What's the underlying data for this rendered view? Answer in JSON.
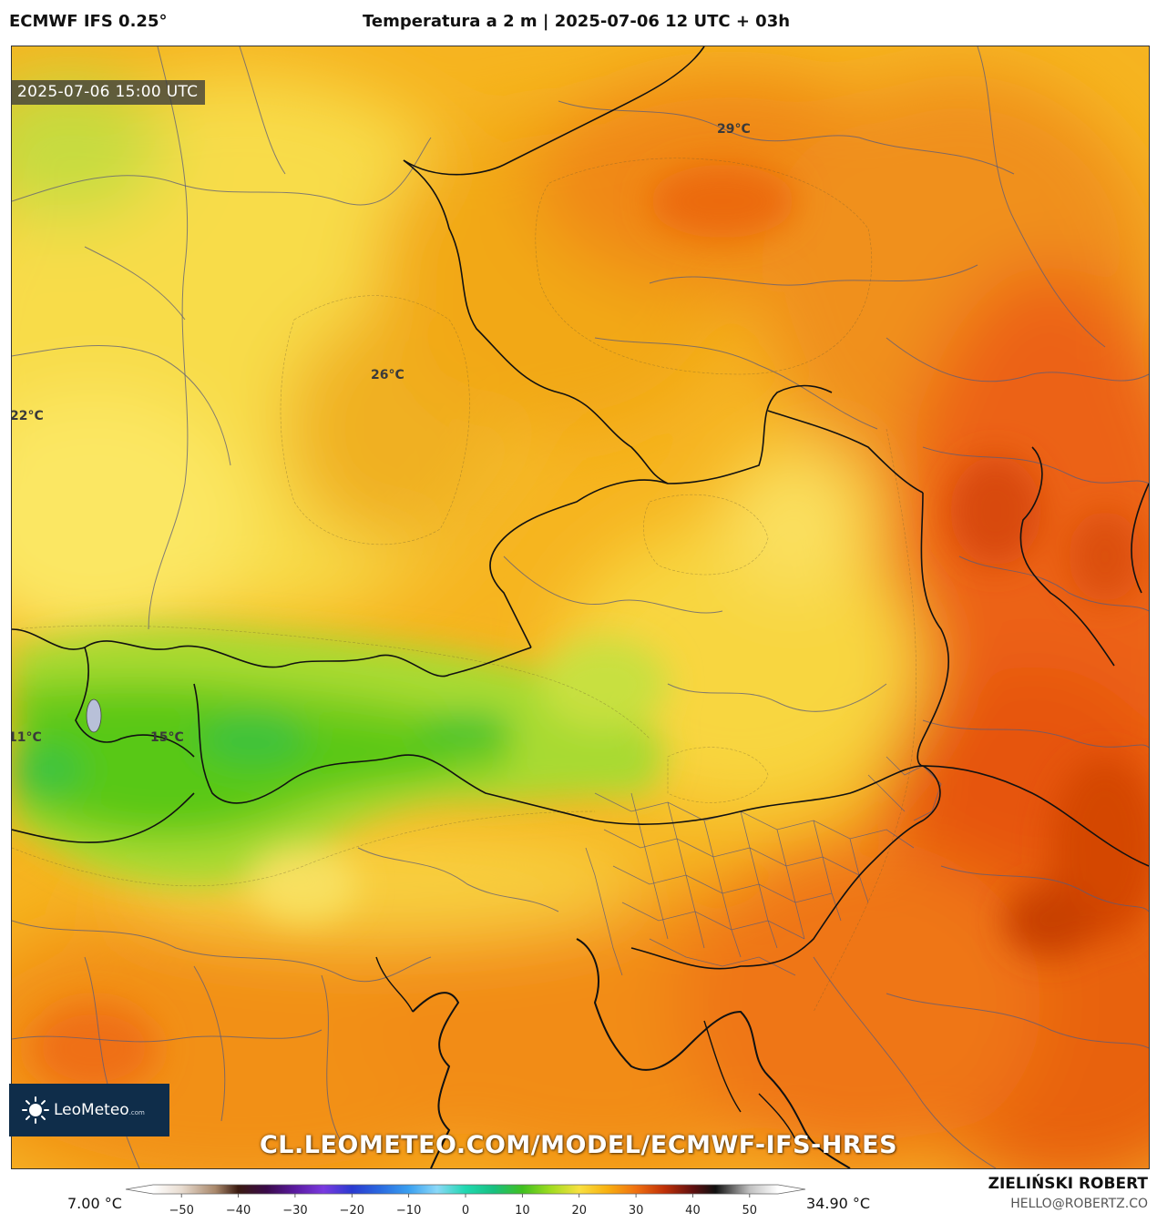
{
  "header": {
    "model": "ECMWF IFS 0.25°",
    "title": "Temperatura a 2 m | 2025-07-06 12 UTC + 03h"
  },
  "map": {
    "valid_time": "2025-07-06 15:00 UTC",
    "region": "Alpine region / Central Europe",
    "temperature_labels": [
      "29°C",
      "26°C",
      "22°C",
      "11°C",
      "15°C"
    ],
    "colors": {
      "cool_green": "#4cc81c",
      "mid_yellow": "#f7e04e",
      "warm_orange": "#f29a10",
      "hot_orange": "#ef6a10",
      "hottest": "#d84a08",
      "border": "#111111",
      "admin_border": "#5b5b7a"
    }
  },
  "branding": {
    "logo_text": "LeoMeteo",
    "logo_suffix": ".com",
    "url": "CL.LEOMETEO.COM/MODEL/ECMWF-IFS-HRES",
    "author": "ZIELIŃSKI ROBERT",
    "email": "HELLO@ROBERTZ.CO"
  },
  "legend": {
    "min": "7.00 °C",
    "max": "34.90 °C",
    "ticks": [
      "−50",
      "−40",
      "−30",
      "−20",
      "−10",
      "0",
      "10",
      "20",
      "30",
      "40",
      "50"
    ],
    "range": [
      -55,
      55
    ],
    "stops": [
      {
        "t": -55,
        "c": "#ffffff"
      },
      {
        "t": -50,
        "c": "#e8dcd0"
      },
      {
        "t": -44,
        "c": "#a8876a"
      },
      {
        "t": -40,
        "c": "#3a1a10"
      },
      {
        "t": -35,
        "c": "#3a0a4a"
      },
      {
        "t": -30,
        "c": "#5a1aa0"
      },
      {
        "t": -25,
        "c": "#7a3ae0"
      },
      {
        "t": -20,
        "c": "#2a3ad0"
      },
      {
        "t": -15,
        "c": "#2a6ae0"
      },
      {
        "t": -10,
        "c": "#3aa0f0"
      },
      {
        "t": -5,
        "c": "#8ad8f8"
      },
      {
        "t": 0,
        "c": "#20d8b0"
      },
      {
        "t": 5,
        "c": "#18c080"
      },
      {
        "t": 10,
        "c": "#40c020"
      },
      {
        "t": 15,
        "c": "#a0dc20"
      },
      {
        "t": 20,
        "c": "#f8e040"
      },
      {
        "t": 25,
        "c": "#f8b010"
      },
      {
        "t": 30,
        "c": "#f07010"
      },
      {
        "t": 35,
        "c": "#c03008"
      },
      {
        "t": 40,
        "c": "#601010"
      },
      {
        "t": 44,
        "c": "#101010"
      },
      {
        "t": 50,
        "c": "#c0c0c0"
      },
      {
        "t": 55,
        "c": "#ffffff"
      }
    ]
  }
}
